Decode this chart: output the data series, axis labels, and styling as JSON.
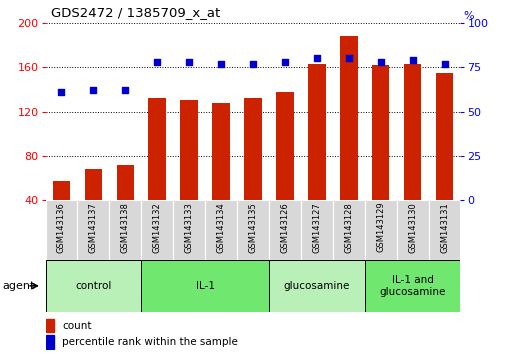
{
  "title": "GDS2472 / 1385709_x_at",
  "samples": [
    "GSM143136",
    "GSM143137",
    "GSM143138",
    "GSM143132",
    "GSM143133",
    "GSM143134",
    "GSM143135",
    "GSM143126",
    "GSM143127",
    "GSM143128",
    "GSM143129",
    "GSM143130",
    "GSM143131"
  ],
  "counts": [
    57,
    68,
    72,
    132,
    130,
    128,
    132,
    138,
    163,
    188,
    162,
    163,
    155
  ],
  "percentiles": [
    61,
    62,
    62,
    78,
    78,
    77,
    77,
    78,
    80,
    80,
    78,
    79,
    77
  ],
  "group_labels": [
    "control",
    "IL-1",
    "glucosamine",
    "IL-1 and\nglucosamine"
  ],
  "group_starts": [
    0,
    3,
    7,
    10
  ],
  "group_ends": [
    3,
    7,
    10,
    13
  ],
  "group_colors": [
    "#b8f0b8",
    "#70e870",
    "#b8f0b8",
    "#70e870"
  ],
  "ylim_left": [
    40,
    200
  ],
  "ylim_right": [
    0,
    100
  ],
  "yticks_left": [
    40,
    80,
    120,
    160,
    200
  ],
  "yticks_right": [
    0,
    25,
    50,
    75,
    100
  ],
  "bar_color": "#CC2200",
  "dot_color": "#0000CC",
  "bar_width": 0.55,
  "agent_label": "agent",
  "legend_count": "count",
  "legend_percentile": "percentile rank within the sample",
  "tick_bg_color": "#d8d8d8",
  "title_fontsize": 9.5,
  "tick_fontsize": 6.0,
  "group_fontsize": 7.5,
  "legend_fontsize": 7.5,
  "agent_fontsize": 8.0
}
